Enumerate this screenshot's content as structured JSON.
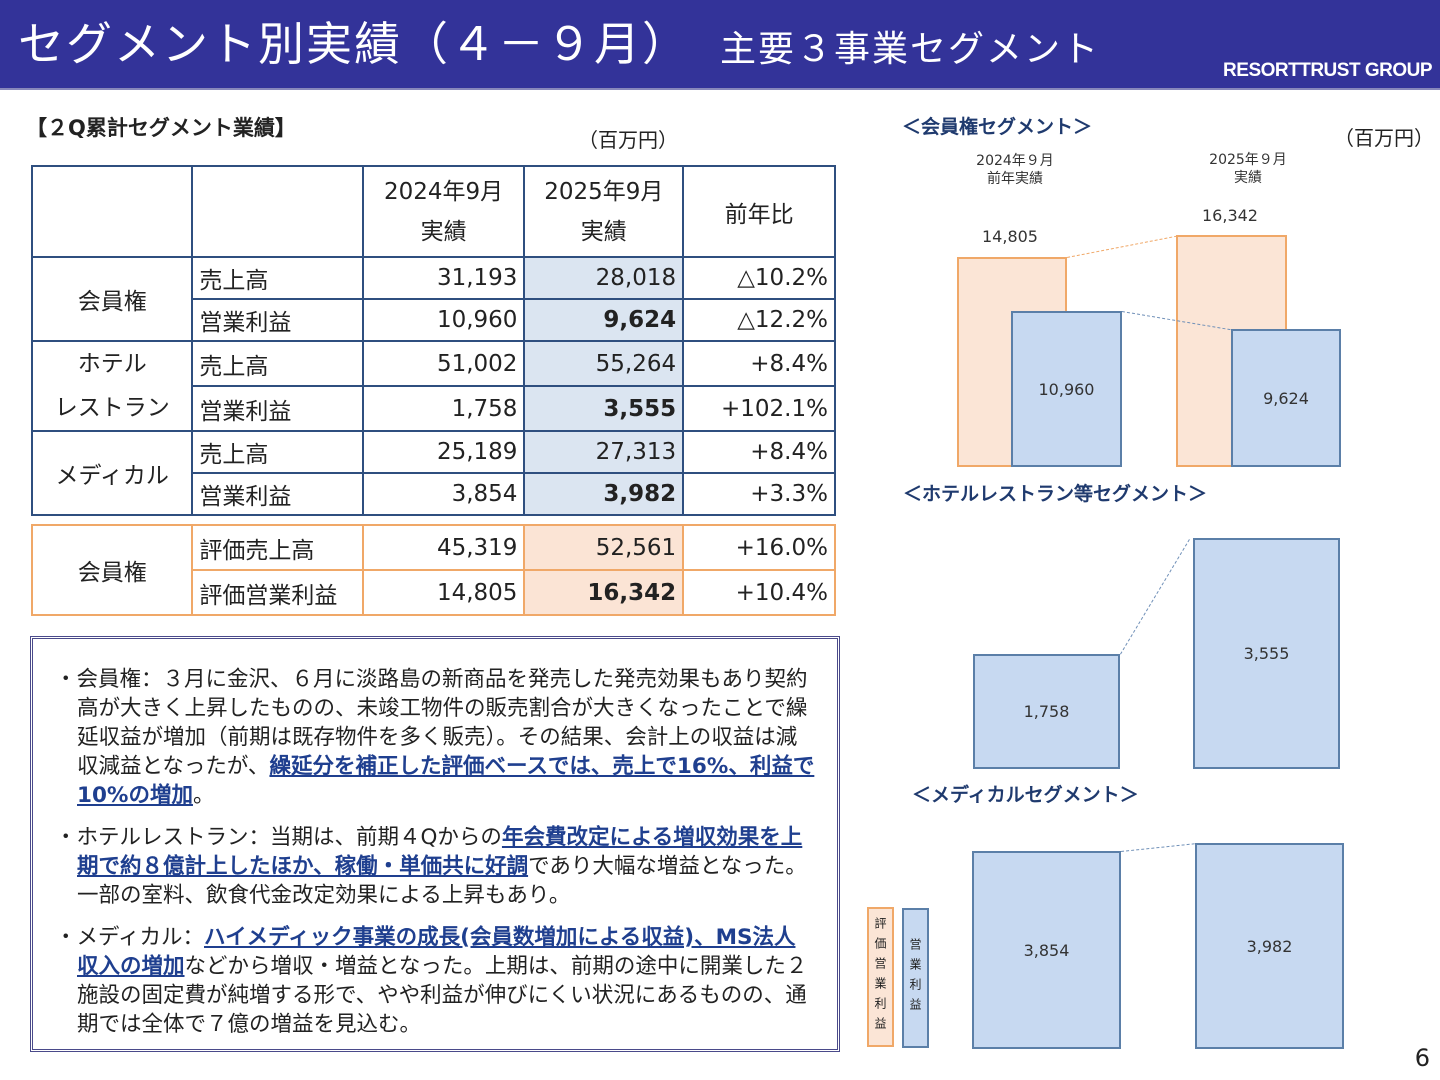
{
  "header": {
    "title": "セグメント別実績（４－９月）",
    "subtitle": "主要３事業セグメント",
    "logo": "RESORTTRUST GROUP"
  },
  "table": {
    "section_title": "【２Q累計セグメント業績】",
    "unit": "（百万円）",
    "headers": {
      "col1_line1": "2024年9月",
      "col1_line2": "実績",
      "col2_line1": "2025年9月",
      "col2_line2": "実績",
      "col3": "前年比"
    },
    "segments": [
      {
        "name": "会員権",
        "rows": [
          {
            "item": "売上高",
            "prev": "31,193",
            "curr": "28,018",
            "yoy": "△10.2%"
          },
          {
            "item": "営業利益",
            "prev": "10,960",
            "curr": "9,624",
            "yoy": "△12.2%"
          }
        ]
      },
      {
        "name_line1": "ホテル",
        "name_line2": "レストラン",
        "rows": [
          {
            "item": "売上高",
            "prev": "51,002",
            "curr": "55,264",
            "yoy": "+8.4%"
          },
          {
            "item": "営業利益",
            "prev": "1,758",
            "curr": "3,555",
            "yoy": "+102.1%"
          }
        ]
      },
      {
        "name": "メディカル",
        "rows": [
          {
            "item": "売上高",
            "prev": "25,189",
            "curr": "27,313",
            "yoy": "+8.4%"
          },
          {
            "item": "営業利益",
            "prev": "3,854",
            "curr": "3,982",
            "yoy": "+3.3%"
          }
        ]
      }
    ],
    "valuation": {
      "name": "会員権",
      "rows": [
        {
          "item": "評価売上高",
          "prev": "45,319",
          "curr": "52,561",
          "yoy": "+16.0%"
        },
        {
          "item": "評価営業利益",
          "prev": "14,805",
          "curr": "16,342",
          "yoy": "+10.4%"
        }
      ]
    }
  },
  "notes": [
    [
      {
        "t": "・会員権：３月に金沢、６月に淡路島の新商品を発売した発売効果もあり契約高が大きく上昇したものの、未竣工物件の販売割合が大きくなったことで繰延収益が増加（前期は既存物件を多く販売）。その結果、会計上の収益は減収減益となったが、"
      },
      {
        "t": "繰延分を補正した評価ベースでは、売上で16%、利益で10%の増加",
        "em": true
      },
      {
        "t": "。"
      }
    ],
    [
      {
        "t": "・ホテルレストラン：当期は、前期４Qからの"
      },
      {
        "t": "年会費改定による増収効果を上期で約８億計上したほか、稼働・単価共に好調",
        "em": true
      },
      {
        "t": "であり大幅な増益となった。一部の室料、飲食代金改定効果による上昇もあり。"
      }
    ],
    [
      {
        "t": "・メディカル："
      },
      {
        "t": "ハイメディック事業の成長(会員数増加による収益)、MS法人収入の増加",
        "em": true
      },
      {
        "t": "などから増収・増益となった。上期は、前期の途中に開業した２施設の固定費が純増する形で、やや利益が伸びにくい状況にあるものの、通期では全体で７億の増益を見込む。"
      }
    ]
  ],
  "charts": {
    "unit": "（百万円）",
    "colors": {
      "valuation_op": "#fbe5d6",
      "op": "#c7d9f1"
    },
    "legend": {
      "valuation_op": "評価営業利益",
      "op": "営業利益"
    },
    "periods": [
      {
        "line1": "2024年９月",
        "line2": "前年実績"
      },
      {
        "line1": "2025年９月",
        "line2": "実績"
      }
    ],
    "member": {
      "title": "＜会員権セグメント＞",
      "valuation_op": [
        "14,805",
        "16,342"
      ],
      "op": [
        "10,960",
        "9,624"
      ]
    },
    "hotel": {
      "title": "＜ホテルレストラン等セグメント＞",
      "op": [
        "1,758",
        "3,555"
      ]
    },
    "medical": {
      "title": "＜メディカルセグメント＞",
      "op": [
        "3,854",
        "3,982"
      ]
    }
  },
  "page_number": "6"
}
